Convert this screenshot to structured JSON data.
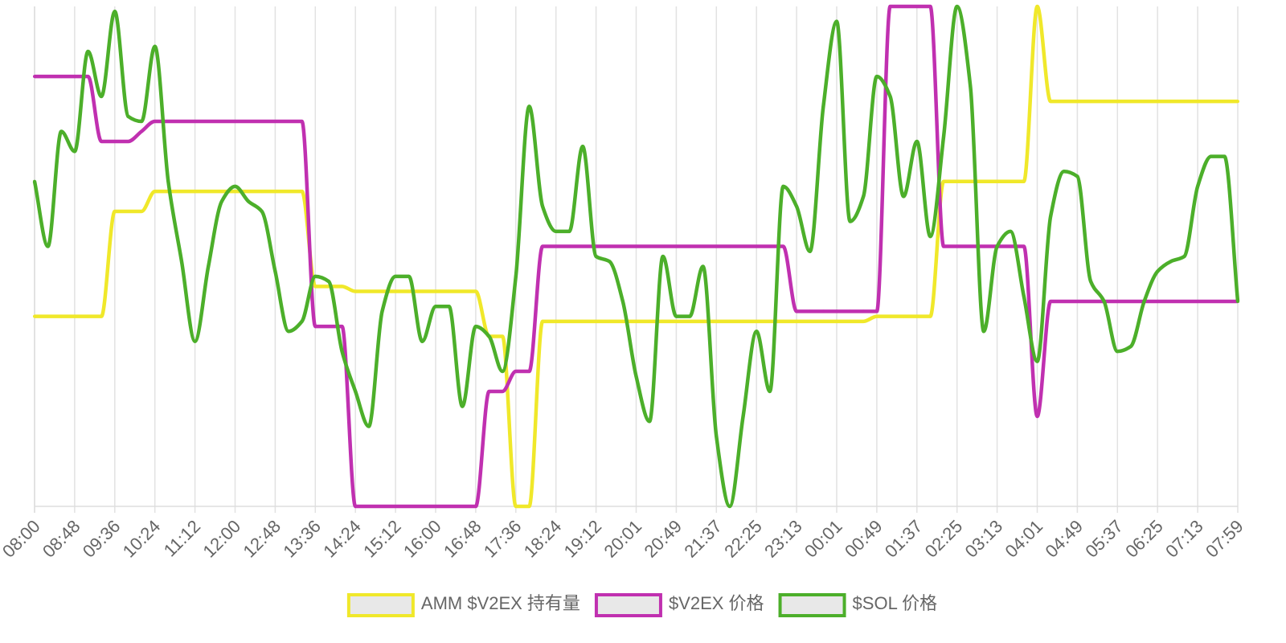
{
  "chart_data": {
    "type": "line",
    "categories": [
      "08:00",
      null,
      null,
      "08:48",
      null,
      null,
      "09:36",
      null,
      null,
      "10:24",
      null,
      null,
      "11:12",
      null,
      null,
      "12:00",
      null,
      null,
      "12:48",
      null,
      null,
      "13:36",
      null,
      null,
      "14:24",
      null,
      null,
      "15:12",
      null,
      null,
      "16:00",
      null,
      null,
      "16:48",
      null,
      null,
      "17:36",
      null,
      null,
      "18:24",
      null,
      null,
      "19:12",
      null,
      null,
      "20:01",
      null,
      null,
      "20:49",
      null,
      null,
      "21:37",
      null,
      null,
      "22:25",
      null,
      null,
      "23:13",
      null,
      null,
      "00:01",
      null,
      null,
      "00:49",
      null,
      null,
      "01:37",
      null,
      null,
      "02:25",
      null,
      null,
      "03:13",
      null,
      null,
      "04:01",
      null,
      null,
      "04:49",
      null,
      null,
      "05:37",
      null,
      null,
      "06:25",
      null,
      null,
      "07:13",
      null,
      null,
      "07:59"
    ],
    "ylim": [
      0,
      100
    ],
    "grid": true,
    "series": [
      {
        "name": "AMM $V2EX 持有量",
        "color": "#f0e82a",
        "values": [
          38,
          38,
          38,
          38,
          38,
          38,
          59,
          59,
          59,
          63,
          63,
          63,
          63,
          63,
          63,
          63,
          63,
          63,
          63,
          63,
          63,
          44,
          44,
          44,
          43,
          43,
          43,
          43,
          43,
          43,
          43,
          43,
          43,
          43,
          34,
          34,
          0,
          0,
          37,
          37,
          37,
          37,
          37,
          37,
          37,
          37,
          37,
          37,
          37,
          37,
          37,
          37,
          37,
          37,
          37,
          37,
          37,
          37,
          37,
          37,
          37,
          37,
          37,
          38,
          38,
          38,
          38,
          38,
          65,
          65,
          65,
          65,
          65,
          65,
          65,
          100,
          81,
          81,
          81,
          81,
          81,
          81,
          81,
          81,
          81,
          81,
          81,
          81,
          81,
          81,
          81
        ]
      },
      {
        "name": "$V2EX 价格",
        "color": "#c030b0",
        "values": [
          86,
          86,
          86,
          86,
          86,
          73,
          73,
          73,
          75,
          77,
          77,
          77,
          77,
          77,
          77,
          77,
          77,
          77,
          77,
          77,
          77,
          36,
          36,
          36,
          0,
          0,
          0,
          0,
          0,
          0,
          0,
          0,
          0,
          0,
          23,
          23,
          27,
          27,
          52,
          52,
          52,
          52,
          52,
          52,
          52,
          52,
          52,
          52,
          52,
          52,
          52,
          52,
          52,
          52,
          52,
          52,
          52,
          39,
          39,
          39,
          39,
          39,
          39,
          39,
          100,
          100,
          100,
          100,
          52,
          52,
          52,
          52,
          52,
          52,
          52,
          18,
          41,
          41,
          41,
          41,
          41,
          41,
          41,
          41,
          41,
          41,
          41,
          41,
          41,
          41,
          41
        ]
      },
      {
        "name": "$SOL 价格",
        "color": "#4caf2a",
        "values": [
          65,
          52,
          75,
          71,
          91,
          82,
          99,
          78,
          77,
          92,
          65,
          49,
          33,
          48,
          61,
          64,
          61,
          59,
          47,
          35,
          37,
          46,
          45,
          31,
          23,
          16,
          39,
          46,
          46,
          33,
          40,
          40,
          20,
          36,
          34,
          27,
          46,
          80,
          60,
          55,
          55,
          72,
          50,
          49,
          41,
          26,
          17,
          50,
          38,
          38,
          48,
          14,
          0,
          18,
          35,
          23,
          64,
          60,
          51,
          80,
          97,
          57,
          62,
          86,
          82,
          62,
          73,
          54,
          74,
          100,
          84,
          35,
          52,
          55,
          42,
          29,
          58,
          67,
          66,
          45,
          41,
          31,
          32,
          41,
          47,
          49,
          50,
          64,
          70,
          70,
          41
        ]
      }
    ]
  }
}
